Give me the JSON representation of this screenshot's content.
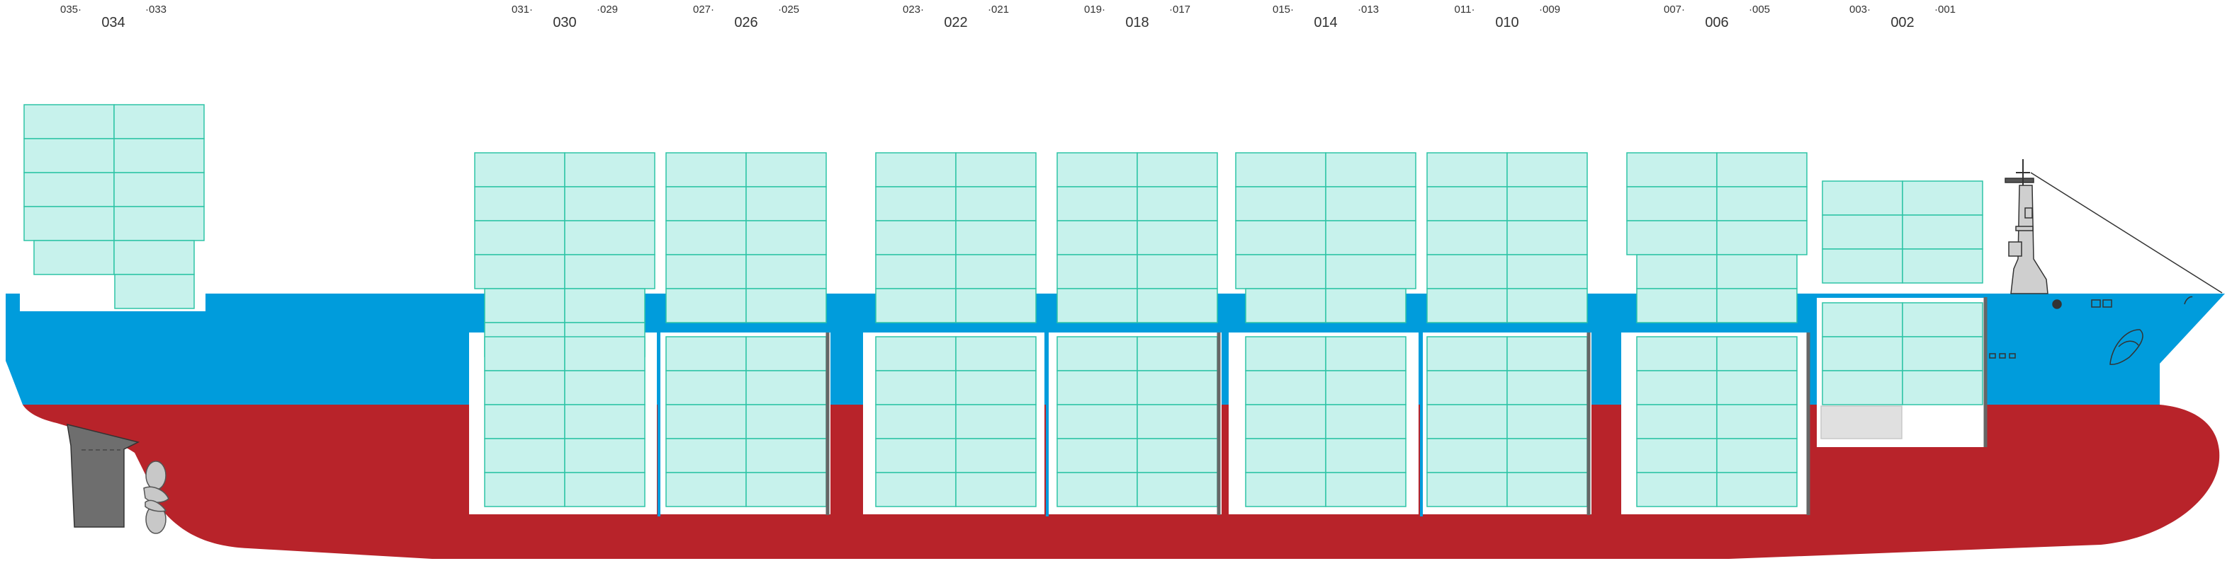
{
  "colors": {
    "hull_red": "#b8232a",
    "hull_blue": "#009cdc",
    "container_fill": "#c7f2ec",
    "container_stroke": "#2ec4a6",
    "empty_slot_fill": "#e0e0e0",
    "bulkhead": "#666666",
    "rudder": "#6e6e6e",
    "propeller": "#c8c8c8",
    "label_text": "#333333"
  },
  "bays": [
    {
      "id": "bay-002",
      "main": "002",
      "left": "003",
      "right": "001"
    },
    {
      "id": "bay-006",
      "main": "006",
      "left": "007",
      "right": "005"
    },
    {
      "id": "bay-010",
      "main": "010",
      "left": "011",
      "right": "009"
    },
    {
      "id": "bay-014",
      "main": "014",
      "left": "015",
      "right": "013"
    },
    {
      "id": "bay-018",
      "main": "018",
      "left": "019",
      "right": "017"
    },
    {
      "id": "bay-022",
      "main": "022",
      "left": "023",
      "right": "021"
    },
    {
      "id": "bay-026",
      "main": "026",
      "left": "027",
      "right": "025"
    },
    {
      "id": "bay-030",
      "main": "030",
      "left": "031",
      "right": "029"
    },
    {
      "id": "bay-034",
      "main": "034",
      "left": "035",
      "right": "033"
    }
  ],
  "icons": {
    "bridge": "bridge-superstructure-icon",
    "mast": "foremast-icon",
    "propeller": "propeller-icon",
    "rudder": "rudder-icon",
    "anchor": "anchor-icon",
    "bow_emblem": "bow-emblem-icon"
  }
}
